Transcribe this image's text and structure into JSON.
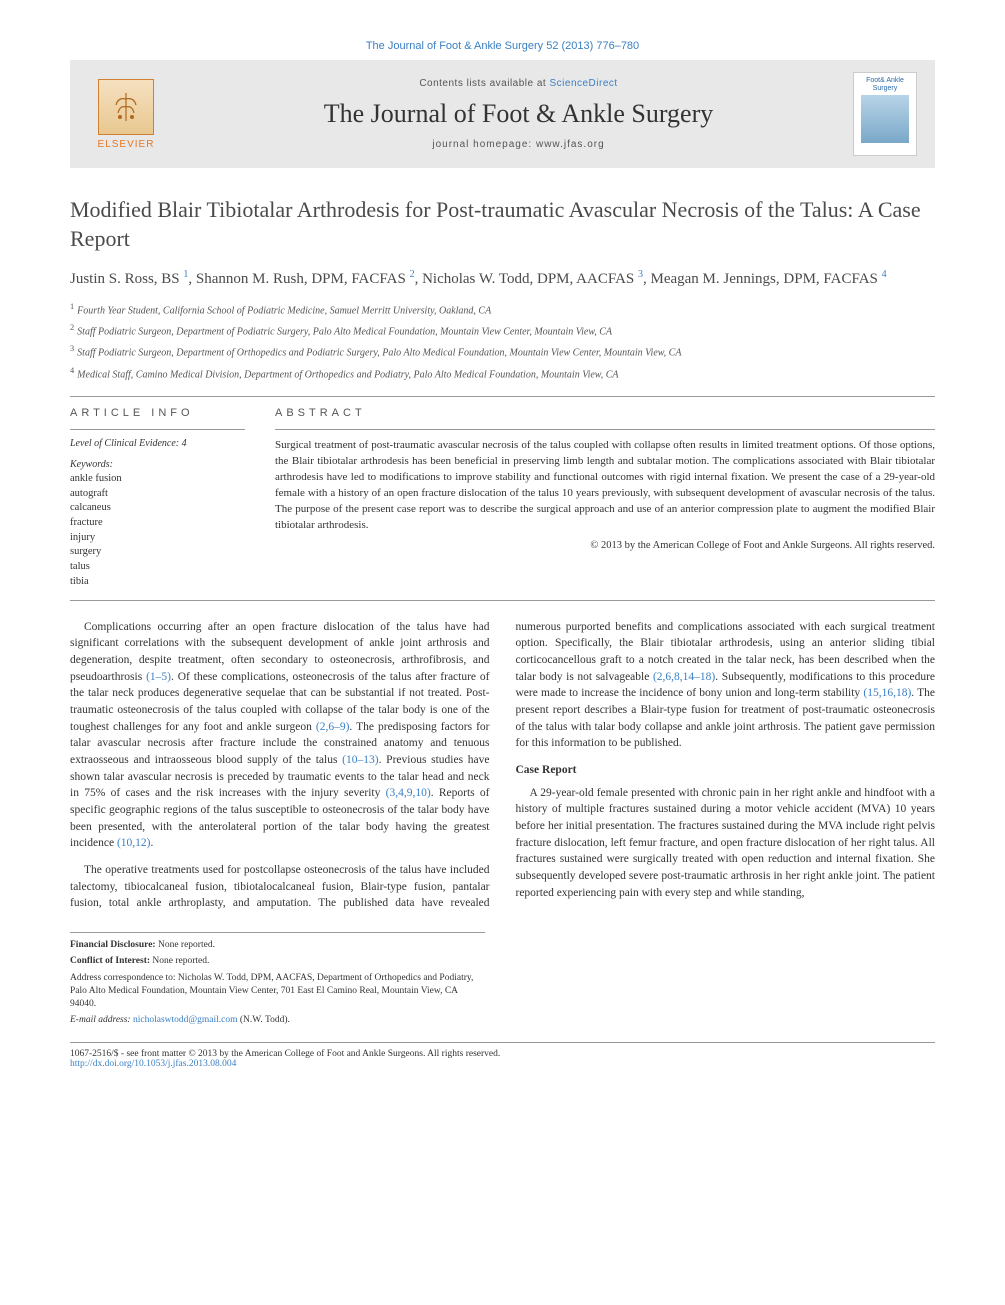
{
  "journal_link_top": "The Journal of Foot & Ankle Surgery 52 (2013) 776–780",
  "header": {
    "contents_prefix": "Contents lists available at ",
    "contents_link": "ScienceDirect",
    "journal_title": "The Journal of Foot & Ankle Surgery",
    "homepage_label": "journal homepage: ",
    "homepage_url": "www.jfas.org",
    "elsevier_label": "ELSEVIER",
    "cover_label": "Foot& Ankle Surgery"
  },
  "article": {
    "title": "Modified Blair Tibiotalar Arthrodesis for Post-traumatic Avascular Necrosis of the Talus: A Case Report",
    "authors_html": "Justin S. Ross, BS <sup>1</sup>, Shannon M. Rush, DPM, FACFAS <sup>2</sup>, Nicholas W. Todd, DPM, AACFAS <sup>3</sup>, Meagan M. Jennings, DPM, FACFAS <sup>4</sup>",
    "affiliations": [
      "Fourth Year Student, California School of Podiatric Medicine, Samuel Merritt University, Oakland, CA",
      "Staff Podiatric Surgeon, Department of Podiatric Surgery, Palo Alto Medical Foundation, Mountain View Center, Mountain View, CA",
      "Staff Podiatric Surgeon, Department of Orthopedics and Podiatric Surgery, Palo Alto Medical Foundation, Mountain View Center, Mountain View, CA",
      "Medical Staff, Camino Medical Division, Department of Orthopedics and Podiatry, Palo Alto Medical Foundation, Mountain View, CA"
    ]
  },
  "info": {
    "heading": "ARTICLE INFO",
    "evidence": "Level of Clinical Evidence: 4",
    "keywords_label": "Keywords:",
    "keywords": [
      "ankle fusion",
      "autograft",
      "calcaneus",
      "fracture",
      "injury",
      "surgery",
      "talus",
      "tibia"
    ]
  },
  "abstract": {
    "heading": "ABSTRACT",
    "text": "Surgical treatment of post-traumatic avascular necrosis of the talus coupled with collapse often results in limited treatment options. Of those options, the Blair tibiotalar arthrodesis has been beneficial in preserving limb length and subtalar motion. The complications associated with Blair tibiotalar arthrodesis have led to modifications to improve stability and functional outcomes with rigid internal fixation. We present the case of a 29-year-old female with a history of an open fracture dislocation of the talus 10 years previously, with subsequent development of avascular necrosis of the talus. The purpose of the present case report was to describe the surgical approach and use of an anterior compression plate to augment the modified Blair tibiotalar arthrodesis.",
    "copyright": "© 2013 by the American College of Foot and Ankle Surgeons. All rights reserved."
  },
  "body": {
    "p1": "Complications occurring after an open fracture dislocation of the talus have had significant correlations with the subsequent development of ankle joint arthrosis and degeneration, despite treatment, often secondary to osteonecrosis, arthrofibrosis, and pseudoarthrosis ",
    "p1_ref": "(1–5)",
    "p1b": ". Of these complications, osteonecrosis of the talus after fracture of the talar neck produces degenerative sequelae that can be substantial if not treated. Post-traumatic osteonecrosis of the talus coupled with collapse of the talar body is one of the toughest challenges for any foot and ankle surgeon ",
    "p1_ref2": "(2,6–9)",
    "p1c": ". The predisposing factors for talar avascular necrosis after fracture include the constrained anatomy and tenuous extraosseous and intraosseous blood supply of the talus ",
    "p1_ref3": "(10–13)",
    "p1d": ". Previous studies have shown talar avascular necrosis is preceded by traumatic events to the talar head and neck in 75% of cases and the risk increases with the injury severity ",
    "p1_ref4": "(3,4,9,10)",
    "p1e": ". Reports of specific geographic regions of the talus susceptible to osteonecrosis of the talar body have been presented, with the anterolateral portion of the talar body having the greatest incidence ",
    "p1_ref5": "(10,12)",
    "p1f": ".",
    "p2": "The operative treatments used for postcollapse osteonecrosis of the talus have included talectomy, tibiocalcaneal fusion, tibiotalocalcaneal fusion, Blair-type fusion, pantalar fusion, total ankle arthroplasty, and amputation. The published data have revealed numerous purported benefits and complications associated with each surgical treatment option. Specifically, the Blair tibiotalar arthrodesis, using an anterior sliding tibial corticocancellous graft to a notch created in the talar neck, has been described when the talar body is not salvageable ",
    "p2_ref": "(2,6,8,14–18)",
    "p2b": ". Subsequently, modifications to this procedure were made to increase the incidence of bony union and long-term stability ",
    "p2_ref2": "(15,16,18)",
    "p2c": ". The present report describes a Blair-type fusion for treatment of post-traumatic osteonecrosis of the talus with talar body collapse and ankle joint arthrosis. The patient gave permission for this information to be published.",
    "case_heading": "Case Report",
    "p3": "A 29-year-old female presented with chronic pain in her right ankle and hindfoot with a history of multiple fractures sustained during a motor vehicle accident (MVA) 10 years before her initial presentation. The fractures sustained during the MVA include right pelvis fracture dislocation, left femur fracture, and open fracture dislocation of her right talus. All fractures sustained were surgically treated with open reduction and internal fixation. She subsequently developed severe post-traumatic arthrosis in her right ankle joint. The patient reported experiencing pain with every step and while standing,"
  },
  "footnotes": {
    "fd_label": "Financial Disclosure:",
    "fd_value": "None reported.",
    "coi_label": "Conflict of Interest:",
    "coi_value": "None reported.",
    "address": "Address correspondence to: Nicholas W. Todd, DPM, AACFAS, Department of Orthopedics and Podiatry, Palo Alto Medical Foundation, Mountain View Center, 701 East El Camino Real, Mountain View, CA 94040.",
    "email_label": "E-mail address:",
    "email": "nicholaswtodd@gmail.com",
    "email_suffix": "(N.W. Todd)."
  },
  "bottom": {
    "line1": "1067-2516/$ - see front matter © 2013 by the American College of Foot and Ankle Surgeons. All rights reserved.",
    "doi": "http://dx.doi.org/10.1053/j.jfas.2013.08.004"
  },
  "colors": {
    "link": "#3b7fc4",
    "header_bg": "#e8e8e8",
    "elsevier_orange": "#e87722",
    "text": "#333333"
  }
}
